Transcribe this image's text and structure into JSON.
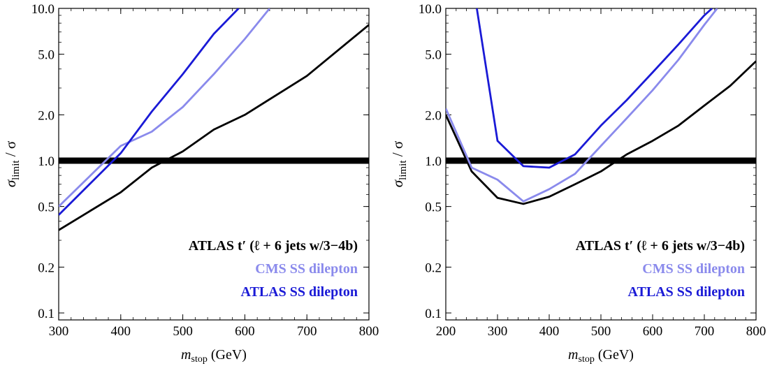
{
  "chart_data": [
    {
      "type": "line",
      "xlabel_main": "m",
      "xlabel_sub": "stop",
      "xlabel_unit": " (GeV)",
      "ylabel_num_main": "σ",
      "ylabel_num_sub": "limit",
      "ylabel_den": " / σ",
      "xlim": [
        300,
        800
      ],
      "ylim": [
        0.09,
        10.0
      ],
      "yscale": "log",
      "xticks": [
        300,
        400,
        500,
        600,
        700,
        800
      ],
      "xtick_labels": [
        "300",
        "400",
        "500",
        "600",
        "700",
        "800"
      ],
      "yticks": [
        0.1,
        0.2,
        0.5,
        1.0,
        2.0,
        5.0,
        10.0
      ],
      "ytick_labels": [
        "0.1",
        "0.2",
        "0.5",
        "1.0",
        "2.0",
        "5.0",
        "10.0"
      ],
      "reference_line": 1.0,
      "legend_placement": "bottom-right",
      "legend": [
        {
          "text": "ATLAS t′ (ℓ + 6 jets w/3−4b)",
          "color": "#000000"
        },
        {
          "text": "CMS SS dilepton",
          "color": "#8a8aec"
        },
        {
          "text": "ATLAS SS dilepton",
          "color": "#1a1ad6"
        }
      ],
      "series": [
        {
          "color": "#000000",
          "x": [
            300,
            400,
            450,
            500,
            550,
            600,
            700,
            800
          ],
          "y": [
            0.35,
            0.62,
            0.9,
            1.15,
            1.6,
            2.0,
            3.6,
            7.8
          ]
        },
        {
          "color": "#8a8aec",
          "x": [
            300,
            400,
            450,
            500,
            550,
            600,
            640
          ],
          "y": [
            0.5,
            1.25,
            1.55,
            2.25,
            3.7,
            6.3,
            10.0
          ]
        },
        {
          "color": "#1a1ad6",
          "x": [
            300,
            400,
            450,
            500,
            550,
            590
          ],
          "y": [
            0.44,
            1.12,
            2.1,
            3.7,
            6.8,
            10.0
          ]
        }
      ]
    },
    {
      "type": "line",
      "xlabel_main": "m",
      "xlabel_sub": "stop",
      "xlabel_unit": " (GeV)",
      "ylabel_num_main": "σ",
      "ylabel_num_sub": "limit",
      "ylabel_den": " / σ",
      "xlim": [
        200,
        800
      ],
      "ylim": [
        0.09,
        10.0
      ],
      "yscale": "log",
      "xticks": [
        200,
        300,
        400,
        500,
        600,
        700,
        800
      ],
      "xtick_labels": [
        "200",
        "300",
        "400",
        "500",
        "600",
        "700",
        "800"
      ],
      "yticks": [
        0.1,
        0.2,
        0.5,
        1.0,
        2.0,
        5.0,
        10.0
      ],
      "ytick_labels": [
        "0.1",
        "0.2",
        "0.5",
        "1.0",
        "2.0",
        "5.0",
        "10.0"
      ],
      "reference_line": 1.0,
      "legend_placement": "bottom-right",
      "legend": [
        {
          "text": "ATLAS t′ (ℓ + 6 jets w/3−4b)",
          "color": "#000000"
        },
        {
          "text": "CMS SS dilepton",
          "color": "#8a8aec"
        },
        {
          "text": "ATLAS SS dilepton",
          "color": "#1a1ad6"
        }
      ],
      "series": [
        {
          "color": "#000000",
          "x": [
            200,
            250,
            300,
            350,
            400,
            450,
            500,
            550,
            600,
            650,
            700,
            750,
            800
          ],
          "y": [
            2.0,
            0.85,
            0.57,
            0.52,
            0.58,
            0.7,
            0.85,
            1.1,
            1.35,
            1.7,
            2.3,
            3.1,
            4.5
          ]
        },
        {
          "color": "#8a8aec",
          "x": [
            200,
            250,
            300,
            350,
            400,
            450,
            500,
            550,
            600,
            650,
            700,
            725
          ],
          "y": [
            2.2,
            0.9,
            0.75,
            0.54,
            0.65,
            0.82,
            1.25,
            1.9,
            2.9,
            4.6,
            7.8,
            10.0
          ]
        },
        {
          "color": "#1a1ad6",
          "x": [
            260,
            300,
            350,
            400,
            450,
            500,
            550,
            600,
            650,
            700,
            715
          ],
          "y": [
            10.0,
            1.35,
            0.92,
            0.9,
            1.1,
            1.7,
            2.5,
            3.8,
            5.8,
            9.0,
            10.0
          ]
        }
      ]
    }
  ]
}
